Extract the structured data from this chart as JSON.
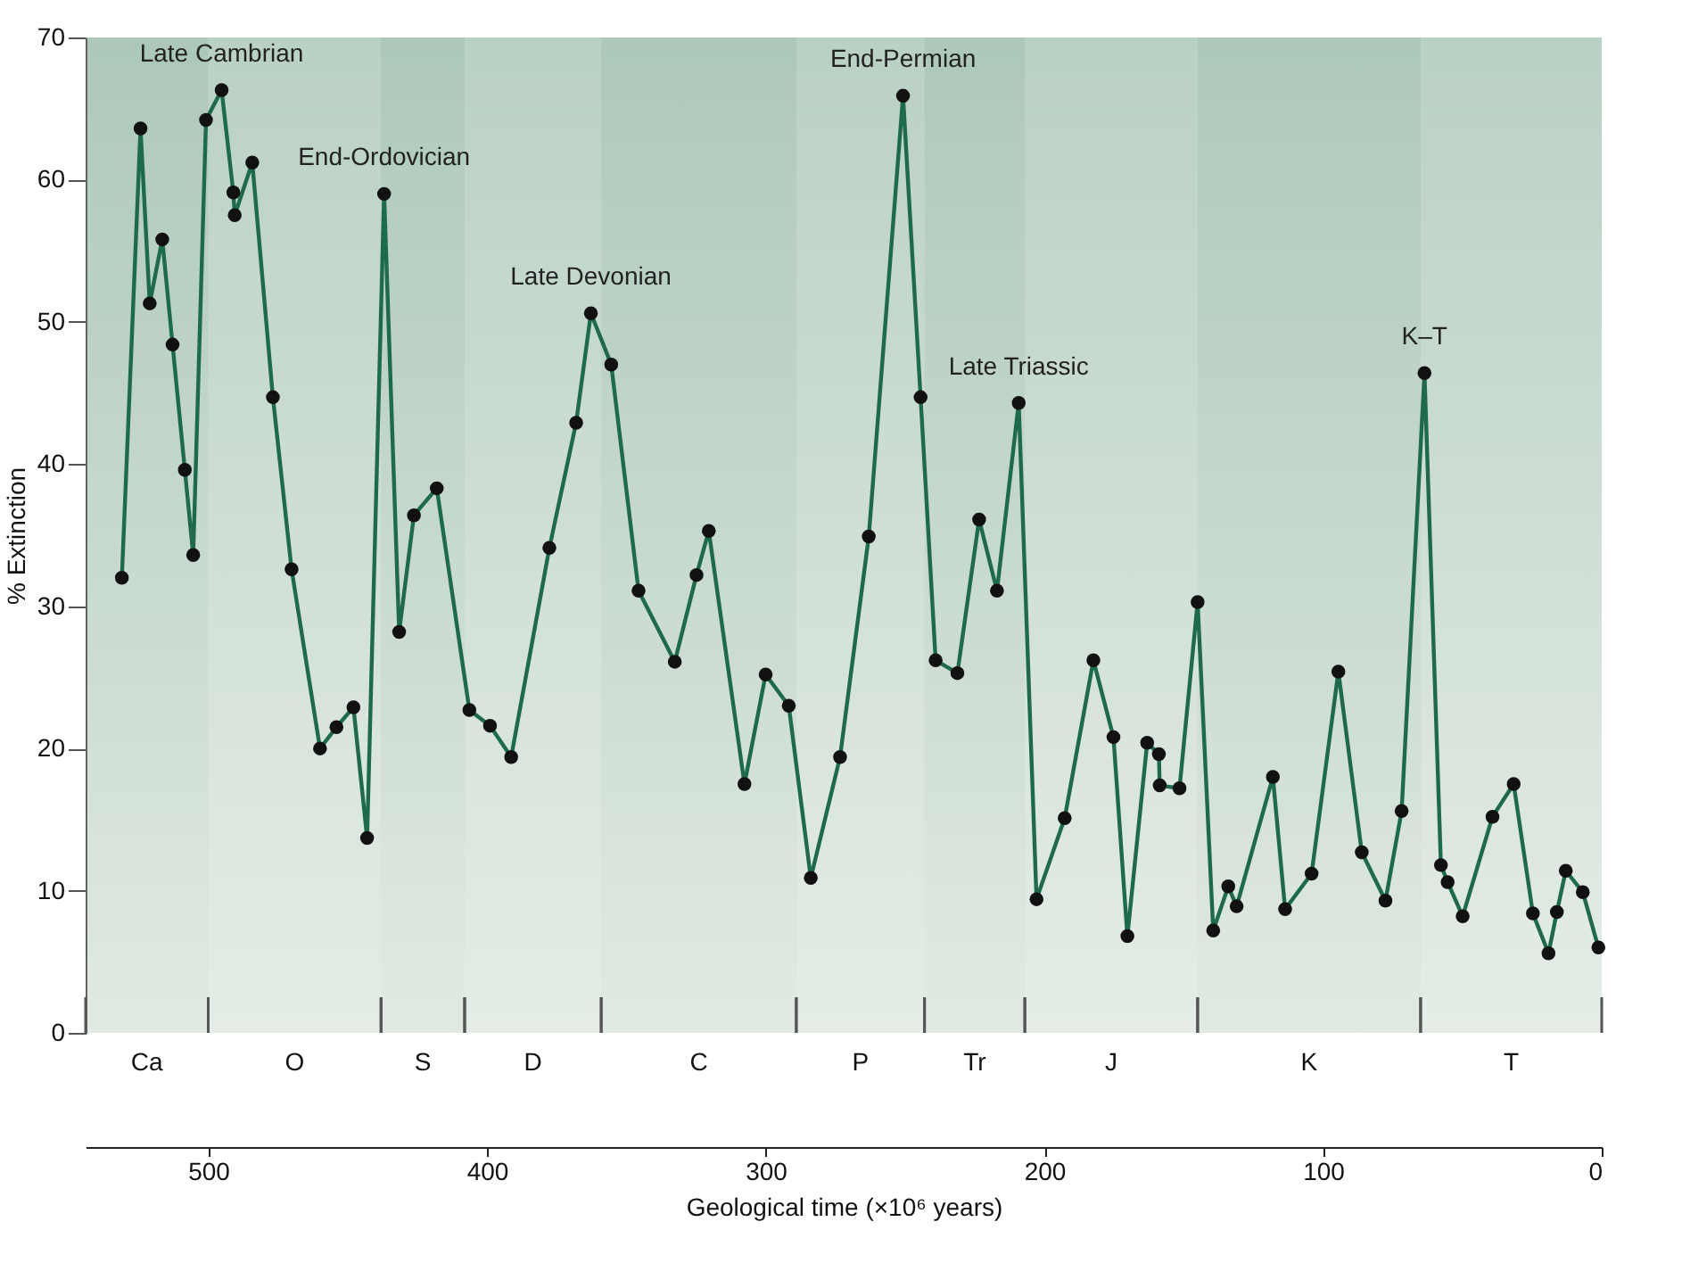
{
  "chart_data": {
    "type": "line",
    "xlabel": "Geological time (×10⁶ years)",
    "ylabel": "% Extinction",
    "x": [
      531,
      524.3,
      521,
      516.5,
      512.8,
      508.4,
      505.4,
      500.8,
      495.2,
      491,
      490.5,
      484.2,
      476.8,
      470.1,
      459.9,
      454,
      447.9,
      443,
      436.9,
      431.5,
      426.2,
      418,
      406.3,
      398.9,
      391.3,
      377.6,
      368,
      362.7,
      355.4,
      345.6,
      332.6,
      324.8,
      320.4,
      307.6,
      300,
      291.7,
      283.8,
      273.3,
      263,
      250.7,
      244.4,
      239,
      231.2,
      223.4,
      217,
      209.2,
      202.8,
      192.7,
      182.4,
      175.2,
      170.2,
      163.1,
      158.9,
      158.6,
      151.5,
      145,
      139.4,
      134,
      131,
      118,
      113.6,
      104.1,
      94.5,
      86.1,
      77.6,
      71.8,
      63.6,
      57.7,
      55.3,
      49.9,
      39.2,
      31.6,
      24.7,
      19.1,
      16.1,
      12.9,
      6.8,
      1.2
    ],
    "series": [
      {
        "color": "#1e6b4b",
        "values": [
          32.0,
          63.6,
          51.3,
          55.8,
          48.4,
          39.6,
          33.6,
          64.2,
          66.3,
          59.1,
          57.5,
          61.2,
          44.7,
          32.6,
          20.0,
          21.5,
          22.9,
          13.7,
          59.0,
          28.2,
          36.4,
          38.3,
          22.7,
          21.6,
          19.4,
          34.1,
          42.9,
          50.6,
          47.0,
          31.1,
          26.1,
          32.2,
          35.3,
          17.5,
          25.2,
          23.0,
          10.9,
          19.4,
          34.9,
          65.9,
          44.7,
          26.2,
          25.3,
          36.1,
          31.1,
          44.3,
          9.4,
          15.1,
          26.2,
          20.8,
          6.8,
          20.4,
          19.6,
          17.4,
          17.2,
          30.3,
          7.2,
          10.3,
          8.9,
          18.0,
          8.7,
          11.2,
          25.4,
          12.7,
          9.3,
          15.6,
          46.4,
          11.8,
          10.6,
          8.2,
          15.2,
          17.5,
          8.4,
          5.6,
          8.5,
          11.4,
          9.9,
          6.0
        ]
      }
    ],
    "xlim": [
      544,
      0
    ],
    "xticks": [
      500,
      400,
      300,
      200,
      100,
      0
    ],
    "ylim": [
      0,
      70
    ],
    "yticks": [
      0,
      10,
      20,
      30,
      40,
      50,
      60,
      70
    ],
    "marker": "circle",
    "grid": false,
    "annotations": [
      {
        "text": "Late Cambrian",
        "x": 495.2,
        "y": 66.3
      },
      {
        "text": "End-Ordovician",
        "x": 436.9,
        "y": 59.0
      },
      {
        "text": "Late Devonian",
        "x": 362.7,
        "y": 50.6
      },
      {
        "text": "End-Permian",
        "x": 250.7,
        "y": 65.9
      },
      {
        "text": "Late Triassic",
        "x": 209.2,
        "y": 44.3
      },
      {
        "text": "K–T",
        "x": 63.6,
        "y": 46.4
      }
    ],
    "bands": [
      {
        "axis": "x",
        "from": 544,
        "to": 500,
        "label": "Ca"
      },
      {
        "axis": "x",
        "from": 500,
        "to": 438,
        "label": "O"
      },
      {
        "axis": "x",
        "from": 438,
        "to": 408,
        "label": "S"
      },
      {
        "axis": "x",
        "from": 408,
        "to": 359,
        "label": "D"
      },
      {
        "axis": "x",
        "from": 359,
        "to": 289,
        "label": "C"
      },
      {
        "axis": "x",
        "from": 289,
        "to": 243,
        "label": "P"
      },
      {
        "axis": "x",
        "from": 243,
        "to": 207,
        "label": "Tr"
      },
      {
        "axis": "x",
        "from": 207,
        "to": 145,
        "label": "J"
      },
      {
        "axis": "x",
        "from": 145,
        "to": 65,
        "label": "K"
      },
      {
        "axis": "x",
        "from": 65,
        "to": 0,
        "label": "T"
      }
    ]
  }
}
